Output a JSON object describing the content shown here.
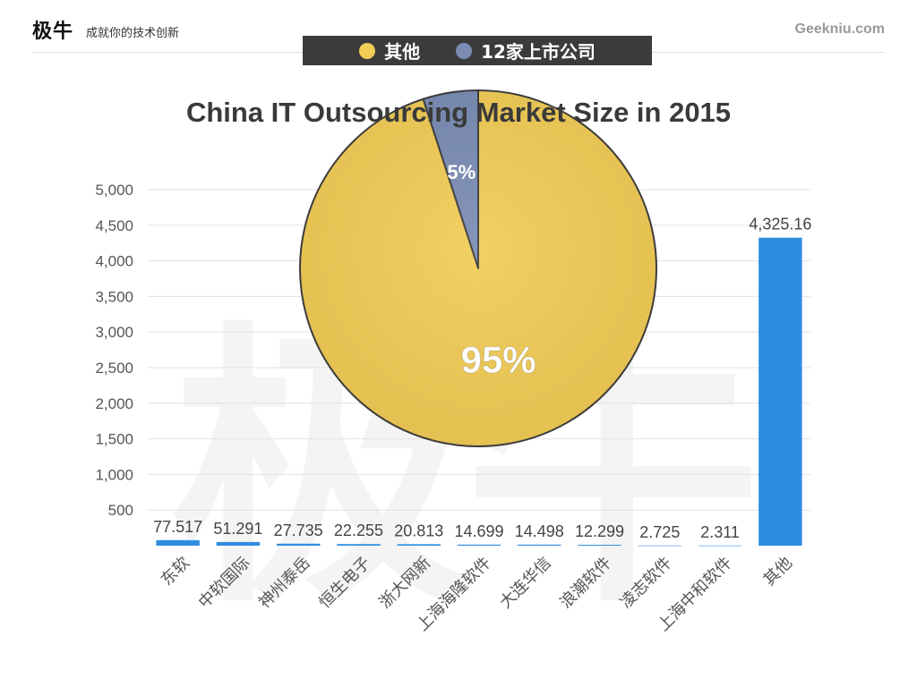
{
  "header": {
    "logo": "极牛",
    "slogan": "成就你的技术创新",
    "site": "Geekniu.com"
  },
  "pie_legend": [
    {
      "label": "其他",
      "color": "#f2cc55"
    },
    {
      "label": "12家上市公司",
      "color": "#7a8cb4"
    }
  ],
  "watermark": "极牛",
  "chart_data": [
    {
      "type": "bar",
      "title": "China IT Outsourcing Market Size in 2015",
      "xlabel": "",
      "ylabel": "",
      "ylim": [
        0,
        5000
      ],
      "yticks": [
        500,
        1000,
        1500,
        2000,
        2500,
        3000,
        3500,
        4000,
        4500,
        5000
      ],
      "ytick_labels": [
        "500",
        "1,000",
        "1,500",
        "2,000",
        "2,500",
        "3,000",
        "3,500",
        "4,000",
        "4,500",
        "5,000"
      ],
      "grid": true,
      "bar_color": "#2e8de0",
      "categories": [
        "东软",
        "中软国际",
        "神州泰岳",
        "恒生电子",
        "浙大网新",
        "上海海隆软件",
        "大连华信",
        "浪潮软件",
        "凌志软件",
        "上海中和软件",
        "其他"
      ],
      "values": [
        77.517,
        51.291,
        27.735,
        22.255,
        20.813,
        14.699,
        14.498,
        12.299,
        2.725,
        2.311,
        4325.16
      ],
      "data_labels": [
        "77.517",
        "51.291",
        "27.735",
        "22.255",
        "20.813",
        "14.699",
        "14.498",
        "12.299",
        "2.725",
        "2.311",
        "4,325.16"
      ]
    },
    {
      "type": "pie",
      "legend": "top",
      "slices": [
        {
          "name": "其他",
          "value": 95,
          "label": "95%",
          "color": "#f2cc55"
        },
        {
          "name": "12家上市公司",
          "value": 5,
          "label": "5%",
          "color": "#7a8cb4"
        }
      ]
    }
  ]
}
